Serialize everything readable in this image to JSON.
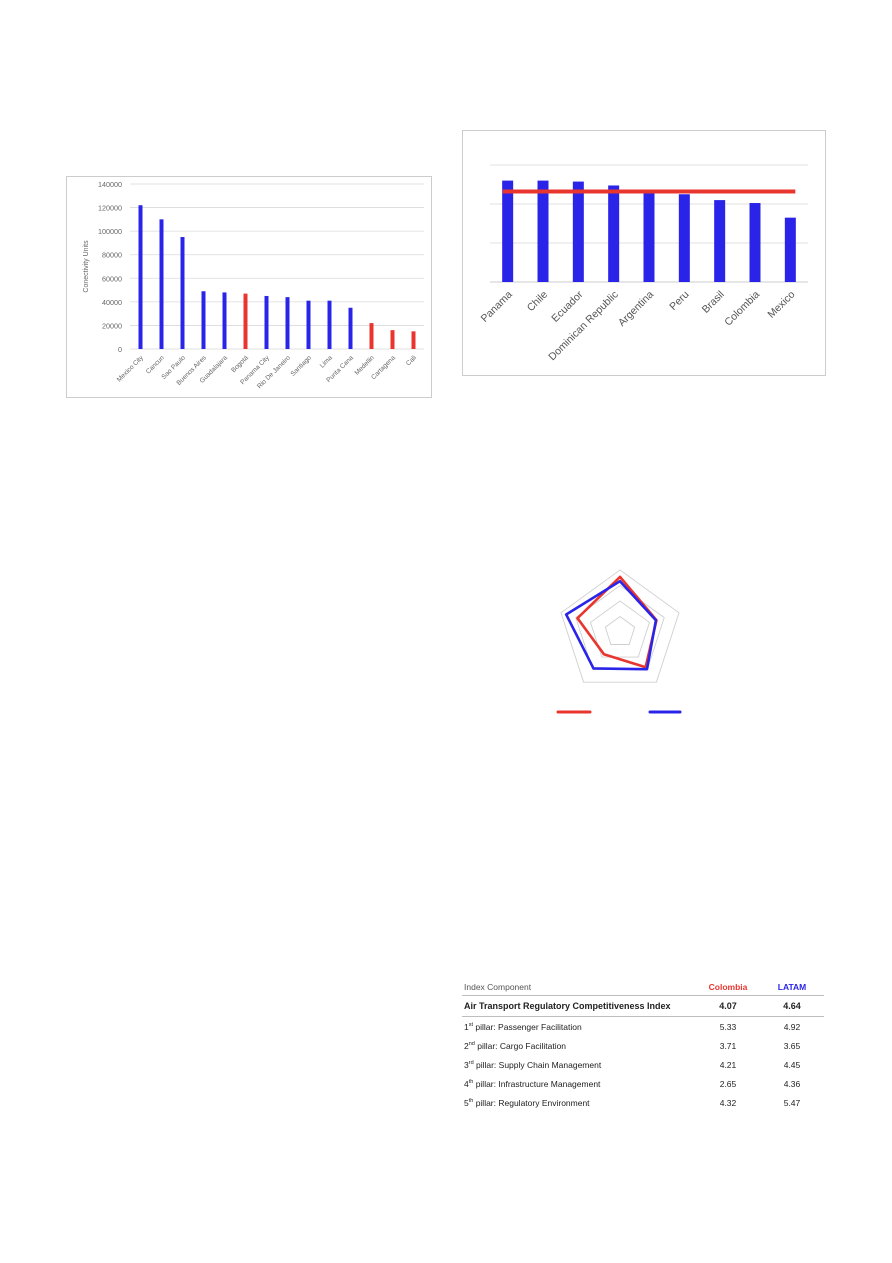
{
  "colors": {
    "blue": "#2a24e8",
    "red": "#e8362f",
    "grid": "#d9d9d9",
    "axis_text": "#666666",
    "border": "#cccccc"
  },
  "chart_data": [
    {
      "type": "bar",
      "title": "",
      "xlabel": "",
      "ylabel": "Conectivity Units",
      "ylim": [
        0,
        140000
      ],
      "yticks": [
        0,
        20000,
        40000,
        60000,
        80000,
        100000,
        120000,
        140000
      ],
      "ytick_labels": [
        "0",
        "20000",
        "40000",
        "60000",
        "80000",
        "100000",
        "120000",
        "140000"
      ],
      "grid": true,
      "categories": [
        "Mexico City",
        "Cancun",
        "Sao Paulo",
        "Buenos Aires",
        "Guadalajara",
        "Bogotá",
        "Panama City",
        "Rio De Janeiro",
        "Santiago",
        "Lima",
        "Punta Cana",
        "Medellin",
        "Cartagena",
        "Cali"
      ],
      "values": [
        122000,
        110000,
        95000,
        49000,
        48000,
        47000,
        45000,
        44000,
        41000,
        41000,
        35000,
        22000,
        16000,
        15000
      ],
      "bar_colors": [
        "blue",
        "blue",
        "blue",
        "blue",
        "blue",
        "red",
        "blue",
        "blue",
        "blue",
        "blue",
        "blue",
        "red",
        "red",
        "red"
      ]
    },
    {
      "type": "bar",
      "title": "",
      "xlabel": "",
      "ylabel": "",
      "ylim": [
        0,
        6
      ],
      "grid": true,
      "axis_tick_labels_visible": false,
      "categories": [
        "Panama",
        "Chile",
        "Ecuador",
        "Dominican Republic",
        "Argentina",
        "Peru",
        "Brasil",
        "Colombia",
        "Mexico"
      ],
      "values": [
        5.2,
        5.2,
        5.15,
        4.95,
        4.55,
        4.5,
        4.2,
        4.05,
        3.3
      ],
      "reference_line": {
        "value": 4.64,
        "color": "red"
      }
    },
    {
      "type": "radar",
      "title": "",
      "axes_count": 5,
      "rmax": 6,
      "rings": 4,
      "axis_labels_visible": false,
      "legend_labels_visible": false,
      "series": [
        {
          "color": "red",
          "values": [
            5.33,
            3.71,
            4.21,
            2.65,
            4.32
          ]
        },
        {
          "color": "blue",
          "values": [
            4.92,
            3.65,
            4.45,
            4.36,
            5.47
          ]
        }
      ]
    },
    {
      "type": "table",
      "header": {
        "component": "Index Component",
        "colombia": "Colombia",
        "latam": "LATAM"
      },
      "index_row": {
        "label": "Air Transport Regulatory Competitiveness Index",
        "colombia": "4.07",
        "latam": "4.64"
      },
      "rows": [
        {
          "num": "1",
          "sup": "st",
          "label": " pillar: Passenger Facilitation",
          "colombia": "5.33",
          "latam": "4.92"
        },
        {
          "num": "2",
          "sup": "nd",
          "label": " pillar: Cargo Facilitation",
          "colombia": "3.71",
          "latam": "3.65"
        },
        {
          "num": "3",
          "sup": "rd",
          "label": " pillar: Supply Chain Management",
          "colombia": "4.21",
          "latam": "4.45"
        },
        {
          "num": "4",
          "sup": "th",
          "label": " pillar: Infrastructure Management",
          "colombia": "2.65",
          "latam": "4.36"
        },
        {
          "num": "5",
          "sup": "th",
          "label": " pillar: Regulatory Environment",
          "colombia": "4.32",
          "latam": "5.47"
        }
      ]
    }
  ]
}
